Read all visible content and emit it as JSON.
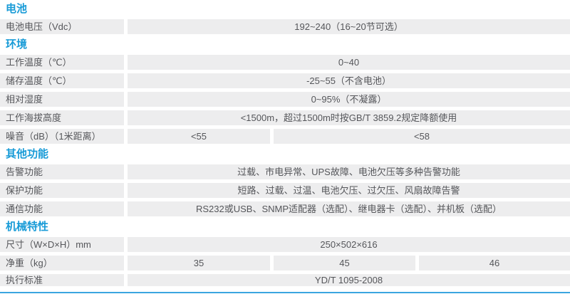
{
  "colors": {
    "header": "#189bd7",
    "cell_bg": "#ededee",
    "text": "#55565a",
    "bottom_line": "#3aa5e0"
  },
  "sections": [
    {
      "title": "电池",
      "rows": [
        {
          "label": "电池电压（Vdc）",
          "values": [
            "192~240（16~20节可选）"
          ]
        }
      ]
    },
    {
      "title": "环境",
      "rows": [
        {
          "label": "工作温度（℃）",
          "values": [
            "0~40"
          ]
        },
        {
          "label": "储存温度（℃）",
          "values": [
            "-25~55（不含电池）"
          ]
        },
        {
          "label": "相对湿度",
          "values": [
            "0~95%（不凝露）"
          ]
        },
        {
          "label": "工作海拔高度",
          "values": [
            "<1500m，超过1500m时按GB/T 3859.2规定降额使用"
          ]
        },
        {
          "label": "噪音（dB）（1米距离）",
          "values": [
            "<55",
            "<58"
          ]
        }
      ]
    },
    {
      "title": "其他功能",
      "rows": [
        {
          "label": "告警功能",
          "values": [
            "过载、市电异常、UPS故障、电池欠压等多种告警功能"
          ]
        },
        {
          "label": "保护功能",
          "values": [
            "短路、过载、过温、电池欠压、过欠压、风扇故障告警"
          ]
        },
        {
          "label": "通信功能",
          "values": [
            "RS232或USB、SNMP适配器（选配）、继电器卡（选配）、并机板（选配）"
          ]
        }
      ]
    },
    {
      "title": "机械特性",
      "rows": [
        {
          "label": "尺寸（W×D×H）mm",
          "values": [
            "250×502×616"
          ]
        },
        {
          "label": "净重（kg）",
          "values": [
            "35",
            "45",
            "46"
          ]
        },
        {
          "label": "执行标准",
          "values": [
            "YD/T 1095-2008"
          ]
        }
      ]
    }
  ]
}
